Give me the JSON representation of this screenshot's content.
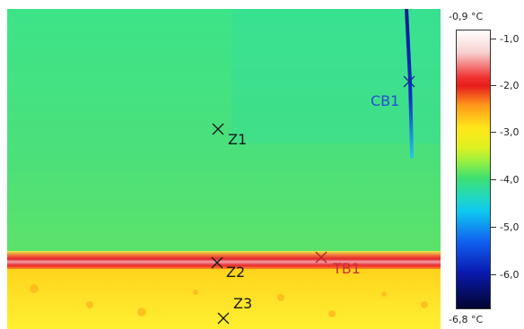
{
  "thermal_image": {
    "markers": [
      {
        "id": "z1",
        "label": "Z1"
      },
      {
        "id": "z2",
        "label": "Z2"
      },
      {
        "id": "z3",
        "label": "Z3"
      },
      {
        "id": "cb1",
        "label": "CB1"
      },
      {
        "id": "tb1",
        "label": "TB1"
      }
    ]
  },
  "color_scale": {
    "max_label": "-0,9 °C",
    "min_label": "-6,8 °C",
    "ticks": [
      "-1,0",
      "-2,0",
      "-3,0",
      "-4,0",
      "-5,0",
      "-6,0"
    ],
    "colors": {
      "hot": "#ffffff",
      "warm": "#f03030",
      "mid": "#ffe61a",
      "cool": "#3fe070",
      "cold": "#1060f0",
      "coldest": "#020430"
    }
  }
}
